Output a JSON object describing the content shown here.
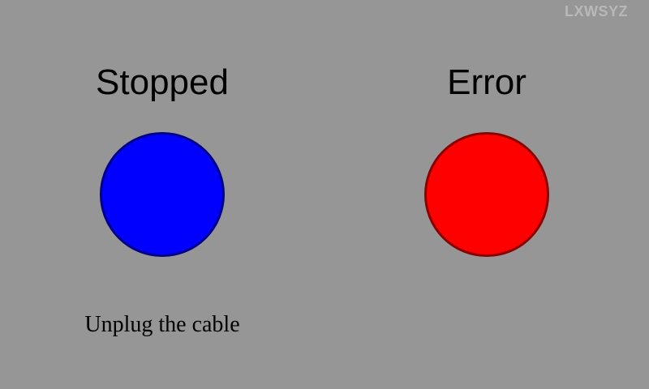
{
  "watermark": "LXWSYZ",
  "left_panel": {
    "status_label": "Stopped",
    "indicator_color": "#0000ff",
    "indicator_border": "#00008a",
    "indicator_icon": "status-light",
    "instruction": "Unplug the cable"
  },
  "right_panel": {
    "status_label": "Error",
    "indicator_color": "#ff0000",
    "indicator_border": "#8a0000",
    "indicator_icon": "status-light"
  },
  "colors": {
    "background": "#969696"
  }
}
